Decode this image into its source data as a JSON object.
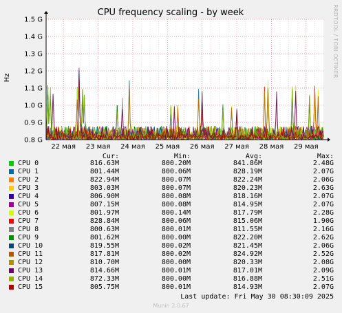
{
  "chart_data": {
    "type": "line",
    "title": "CPU frequency scaling - by week",
    "ylabel": "Hz",
    "side_label": "RRDTOOL / TOBI OETIKER",
    "yticks": [
      {
        "value": 0.8,
        "label": "0.8 G"
      },
      {
        "value": 0.9,
        "label": "0.9 G"
      },
      {
        "value": 1.0,
        "label": "1.0 G"
      },
      {
        "value": 1.1,
        "label": "1.1 G"
      },
      {
        "value": 1.2,
        "label": "1.2 G"
      },
      {
        "value": 1.3,
        "label": "1.3 G"
      },
      {
        "value": 1.4,
        "label": "1.4 G"
      },
      {
        "value": 1.5,
        "label": "1.5 G"
      }
    ],
    "ylim": [
      0.8,
      1.5
    ],
    "xlim": [
      0,
      8.0
    ],
    "xticks": [
      {
        "value": 0.5,
        "label": "22 мая"
      },
      {
        "value": 1.5,
        "label": "23 мая"
      },
      {
        "value": 2.5,
        "label": "24 мая"
      },
      {
        "value": 3.5,
        "label": "25 мая"
      },
      {
        "value": 4.5,
        "label": "26 мая"
      },
      {
        "value": 5.5,
        "label": "27 мая"
      },
      {
        "value": 6.5,
        "label": "28 мая"
      },
      {
        "value": 7.5,
        "label": "29 мая"
      }
    ],
    "grid": true,
    "legend_columns": [
      "Cur:",
      "Min:",
      "Avg:",
      "Max:"
    ],
    "series": [
      {
        "name": "CPU 0",
        "color": "#00cc00",
        "cur": "816.63M",
        "min": "800.20M",
        "avg": "841.86M",
        "max": "2.48G"
      },
      {
        "name": "CPU 1",
        "color": "#0066b3",
        "cur": "801.44M",
        "min": "800.06M",
        "avg": "828.19M",
        "max": "2.07G"
      },
      {
        "name": "CPU 2",
        "color": "#ff8000",
        "cur": "822.94M",
        "min": "800.07M",
        "avg": "822.24M",
        "max": "2.06G"
      },
      {
        "name": "CPU 3",
        "color": "#ffcc00",
        "cur": "803.03M",
        "min": "800.07M",
        "avg": "820.23M",
        "max": "2.63G"
      },
      {
        "name": "CPU 4",
        "color": "#330099",
        "cur": "806.90M",
        "min": "800.08M",
        "avg": "818.16M",
        "max": "2.07G"
      },
      {
        "name": "CPU 5",
        "color": "#990099",
        "cur": "807.15M",
        "min": "800.08M",
        "avg": "814.95M",
        "max": "2.07G"
      },
      {
        "name": "CPU 6",
        "color": "#ccff00",
        "cur": "801.97M",
        "min": "800.14M",
        "avg": "817.79M",
        "max": "2.28G"
      },
      {
        "name": "CPU 7",
        "color": "#ff0000",
        "cur": "828.84M",
        "min": "800.06M",
        "avg": "815.06M",
        "max": "1.90G"
      },
      {
        "name": "CPU 8",
        "color": "#808080",
        "cur": "800.63M",
        "min": "800.01M",
        "avg": "811.55M",
        "max": "2.16G"
      },
      {
        "name": "CPU 9",
        "color": "#008f00",
        "cur": "801.62M",
        "min": "800.00M",
        "avg": "822.20M",
        "max": "2.62G"
      },
      {
        "name": "CPU 10",
        "color": "#00487d",
        "cur": "819.55M",
        "min": "800.02M",
        "avg": "821.45M",
        "max": "2.06G"
      },
      {
        "name": "CPU 11",
        "color": "#b35a00",
        "cur": "817.81M",
        "min": "800.02M",
        "avg": "824.92M",
        "max": "2.52G"
      },
      {
        "name": "CPU 12",
        "color": "#b38f00",
        "cur": "810.70M",
        "min": "800.00M",
        "avg": "820.33M",
        "max": "2.08G"
      },
      {
        "name": "CPU 13",
        "color": "#6b006b",
        "cur": "814.66M",
        "min": "800.01M",
        "avg": "817.01M",
        "max": "2.09G"
      },
      {
        "name": "CPU 14",
        "color": "#8fb300",
        "cur": "872.33M",
        "min": "800.00M",
        "avg": "816.88M",
        "max": "2.51G"
      },
      {
        "name": "CPU 15",
        "color": "#b30000",
        "cur": "805.75M",
        "min": "800.01M",
        "avg": "814.93M",
        "max": "2.07G"
      }
    ]
  },
  "last_update": "Last update: Fri May 30 08:30:09 2025",
  "footer": "Munin 2.0.67"
}
